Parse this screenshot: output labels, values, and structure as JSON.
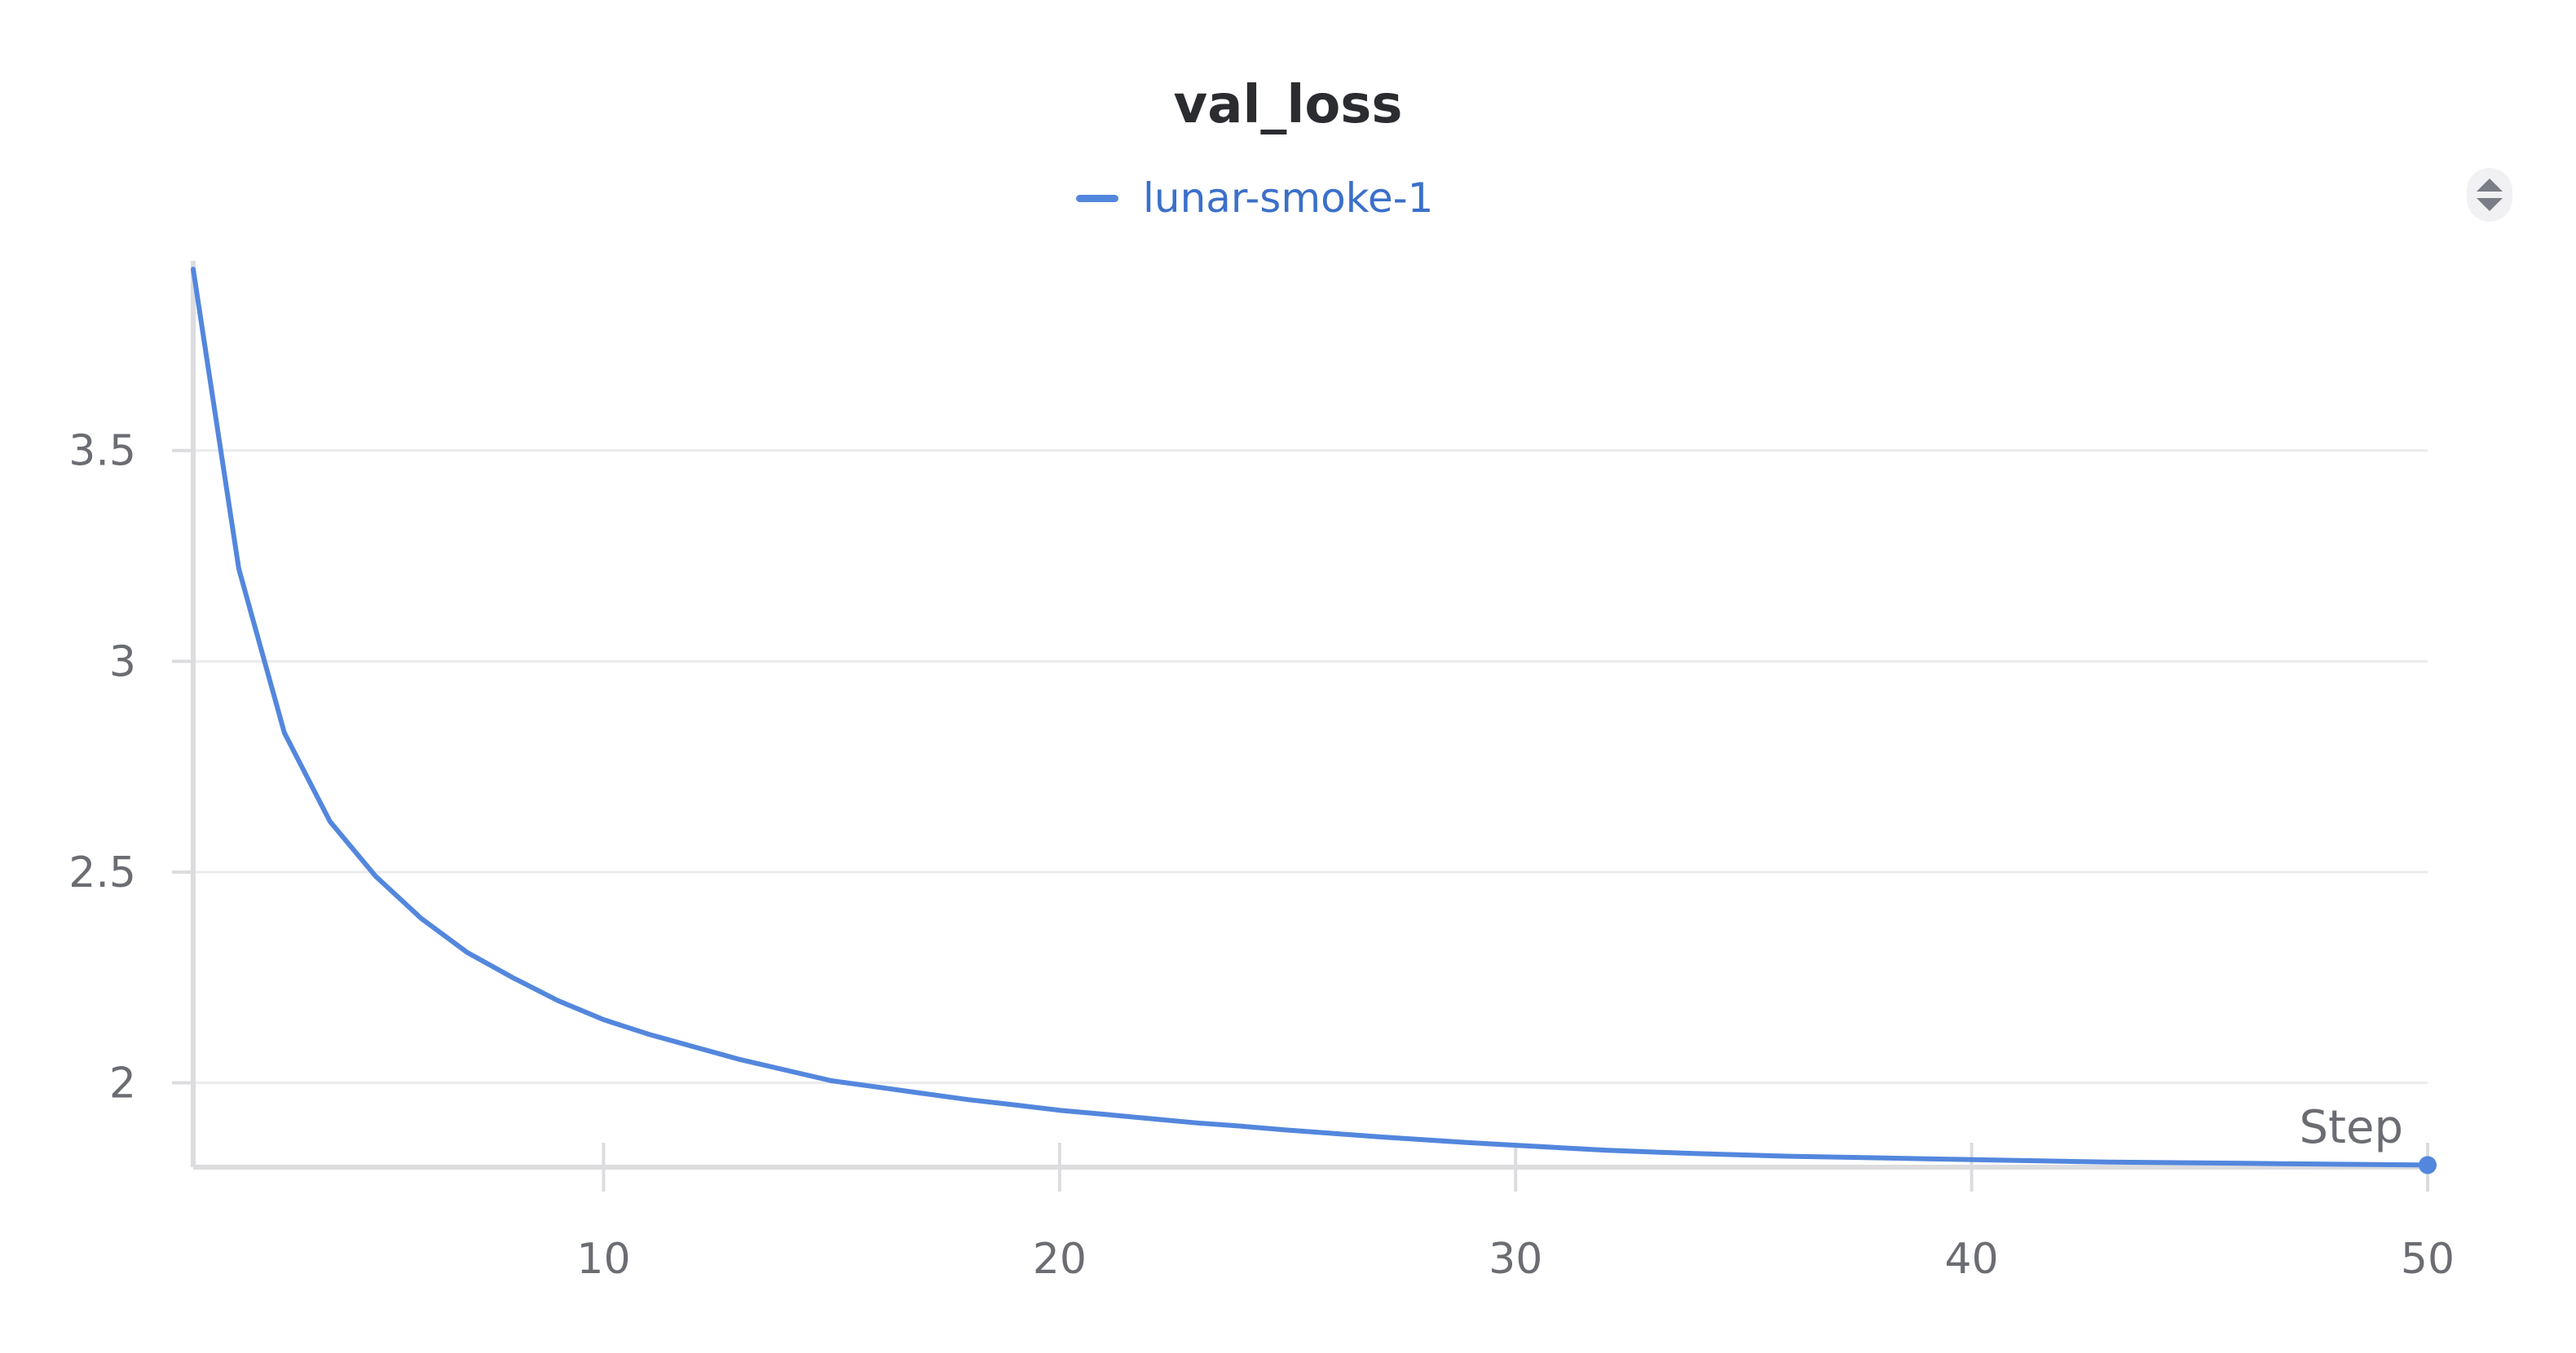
{
  "chart_data": {
    "type": "line",
    "title": "val_loss",
    "xlabel": "Step",
    "ylabel": "",
    "xlim": [
      1,
      50
    ],
    "ylim": [
      1.8,
      3.95
    ],
    "x_ticks": [
      10,
      20,
      30,
      40,
      50
    ],
    "y_ticks": [
      2,
      2.5,
      3,
      3.5
    ],
    "y_tick_labels": [
      "2",
      "2.5",
      "3",
      "3.5"
    ],
    "grid": true,
    "legend_position": "top-center",
    "series": [
      {
        "name": "lunar-smoke-1",
        "color": "#5387dd",
        "x": [
          1,
          2,
          3,
          4,
          5,
          6,
          7,
          8,
          9,
          10,
          11,
          12,
          13,
          14,
          15,
          16,
          17,
          18,
          19,
          20,
          21,
          22,
          23,
          24,
          25,
          26,
          27,
          28,
          29,
          30,
          31,
          32,
          33,
          34,
          35,
          36,
          37,
          38,
          39,
          40,
          41,
          42,
          43,
          44,
          45,
          46,
          47,
          48,
          49,
          50
        ],
        "y": [
          3.93,
          3.22,
          2.83,
          2.62,
          2.49,
          2.39,
          2.31,
          2.25,
          2.195,
          2.15,
          2.115,
          2.085,
          2.055,
          2.03,
          2.005,
          1.99,
          1.975,
          1.96,
          1.948,
          1.935,
          1.925,
          1.915,
          1.905,
          1.897,
          1.888,
          1.88,
          1.872,
          1.865,
          1.858,
          1.852,
          1.846,
          1.84,
          1.836,
          1.832,
          1.829,
          1.826,
          1.824,
          1.822,
          1.82,
          1.818,
          1.816,
          1.814,
          1.812,
          1.811,
          1.81,
          1.809,
          1.808,
          1.807,
          1.806,
          1.805
        ]
      }
    ]
  },
  "controls": {
    "panel_toggle_icon": "sort-updown-icon"
  }
}
